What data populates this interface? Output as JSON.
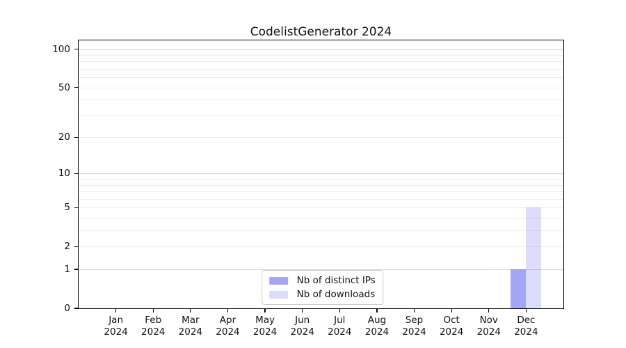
{
  "title": "CodelistGenerator 2024",
  "chart_data": {
    "type": "bar",
    "title": "CodelistGenerator 2024",
    "xlabel": "",
    "ylabel": "",
    "scale": "log1p",
    "ylim": [
      0,
      117
    ],
    "grid": true,
    "legend_position": "lower center",
    "categories": [
      "Jan 2024",
      "Feb 2024",
      "Mar 2024",
      "Apr 2024",
      "May 2024",
      "Jun 2024",
      "Jul 2024",
      "Aug 2024",
      "Sep 2024",
      "Oct 2024",
      "Nov 2024",
      "Dec 2024"
    ],
    "series": [
      {
        "name": "Nb of distinct IPs",
        "color": "#a6a6f4",
        "fill": "rgba(40,40,230,0.42)",
        "values": [
          0,
          0,
          0,
          0,
          0,
          0,
          0,
          0,
          0,
          0,
          0,
          1
        ]
      },
      {
        "name": "Nb of downloads",
        "color": "#dcdcf8",
        "fill": "rgba(40,40,230,0.16)",
        "values": [
          0,
          0,
          0,
          0,
          0,
          0,
          0,
          0,
          0,
          0,
          0,
          5
        ]
      }
    ],
    "yticks": [
      0,
      1,
      2,
      5,
      10,
      20,
      50,
      100
    ],
    "major_gridlines": [
      1,
      10,
      100
    ],
    "minor_gridlines": [
      2,
      3,
      4,
      5,
      6,
      7,
      8,
      9,
      20,
      30,
      40,
      50,
      60,
      70,
      80,
      90
    ],
    "colors": {
      "major_grid": "#d2d2d2",
      "minor_grid": "#ececec",
      "axis": "#000000",
      "text": "#111111"
    }
  }
}
